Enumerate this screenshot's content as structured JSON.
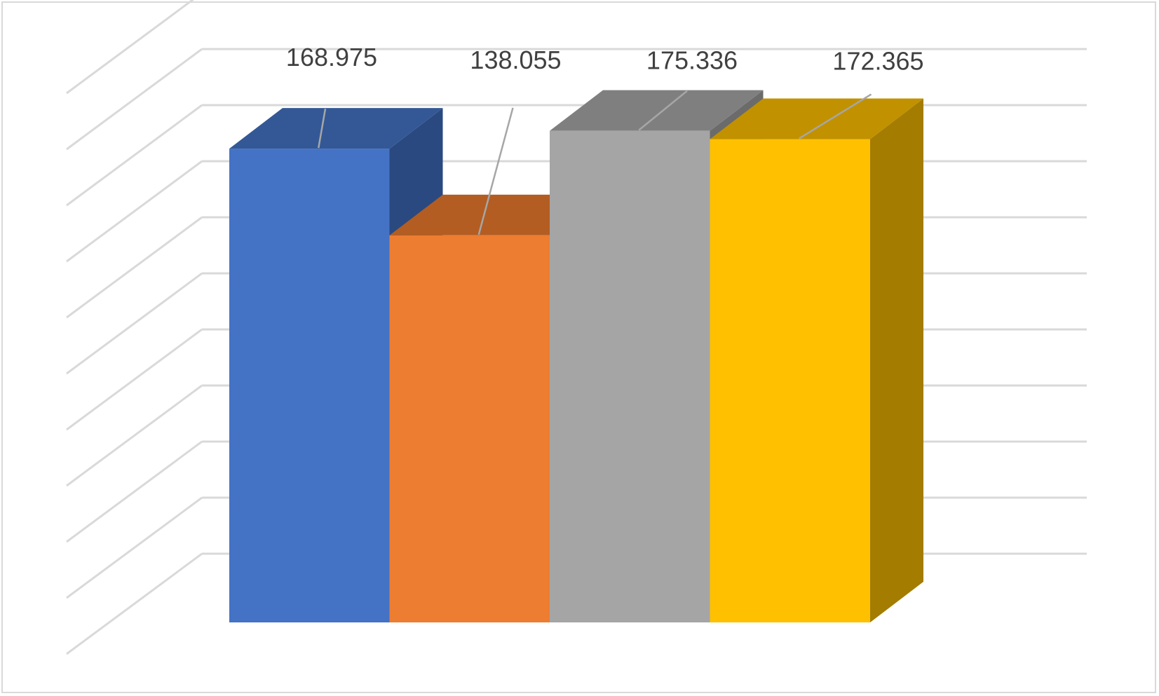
{
  "chart_data": {
    "type": "bar",
    "style": "3d-column",
    "categories": [
      "",
      "",
      "",
      ""
    ],
    "values": [
      168.975,
      138.055,
      175.336,
      172.365
    ],
    "data_labels": [
      "168.975",
      "138.055",
      "175.336",
      "172.365"
    ],
    "series_colors": [
      {
        "front": "#4472c4",
        "top": "#335895",
        "side": "#2a4980"
      },
      {
        "front": "#ed7d31",
        "top": "#b35d22",
        "side": "#a24f1d"
      },
      {
        "front": "#a5a5a5",
        "top": "#7f7f7f",
        "side": "#6b6b6b"
      },
      {
        "front": "#ffc000",
        "top": "#c19100",
        "side": "#a37c00"
      }
    ],
    "title": "",
    "xlabel": "",
    "ylabel": "",
    "ylim": [
      0,
      200
    ],
    "gridlines": 11,
    "grid": true,
    "legend": "none",
    "gridline_color": "#d9d9d9",
    "leader_line_color": "#a6a6a6"
  }
}
